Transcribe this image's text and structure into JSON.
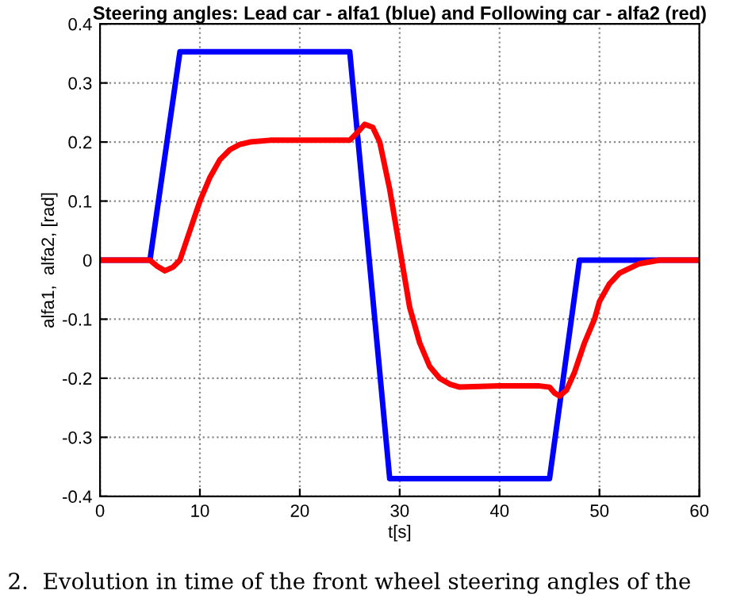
{
  "chart_data": {
    "type": "line",
    "title": "Steering angles: Lead car - alfa1 (blue) and Following car - alfa2 (red)",
    "xlabel": "t[s]",
    "ylabel": "alfa1,  alfa2, [rad]",
    "annotations": [
      "2.  Evolution in time of the front wheel steering angles of the"
    ],
    "series": [
      {
        "color": "#0000ff",
        "x": [
          0,
          5,
          8,
          25,
          29,
          45,
          48,
          60
        ],
        "values": [
          0,
          0,
          0.353,
          0.353,
          -0.37,
          -0.37,
          0,
          0
        ]
      },
      {
        "color": "#ff0000",
        "x": [
          0,
          5,
          5.7,
          6.5,
          7.3,
          8,
          9,
          10,
          11,
          12,
          13,
          14,
          15,
          17,
          20,
          25,
          25.7,
          26.5,
          27.3,
          28,
          29,
          30,
          31,
          32,
          33,
          34,
          35,
          36,
          38,
          40,
          44,
          45,
          45.5,
          46,
          46.7,
          47.5,
          48.5,
          49.5,
          50,
          51,
          52,
          54,
          56,
          60
        ],
        "values": [
          0,
          0,
          -0.01,
          -0.018,
          -0.012,
          0,
          0.05,
          0.1,
          0.14,
          0.17,
          0.187,
          0.196,
          0.2,
          0.203,
          0.203,
          0.203,
          0.215,
          0.23,
          0.225,
          0.2,
          0.12,
          0.02,
          -0.08,
          -0.14,
          -0.18,
          -0.2,
          -0.21,
          -0.215,
          -0.214,
          -0.213,
          -0.213,
          -0.215,
          -0.225,
          -0.23,
          -0.22,
          -0.19,
          -0.14,
          -0.1,
          -0.07,
          -0.04,
          -0.022,
          -0.006,
          0,
          0
        ]
      }
    ],
    "xlim": [
      0,
      60
    ],
    "ylim": [
      -0.4,
      0.4
    ],
    "xticks": [
      0,
      10,
      20,
      30,
      40,
      50,
      60
    ],
    "yticks": [
      -0.4,
      -0.3,
      -0.2,
      -0.1,
      0,
      0.1,
      0.2,
      0.3,
      0.4
    ],
    "grid": true,
    "line_style": "solid",
    "marker": "none"
  }
}
